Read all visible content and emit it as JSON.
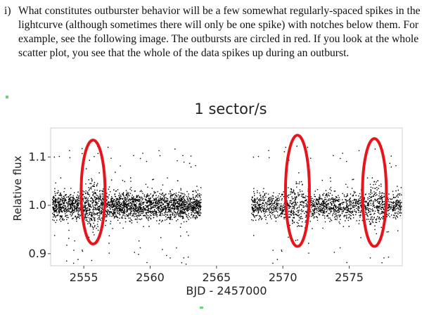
{
  "paragraph": {
    "marker": "i)",
    "text": "What constitutes outburster behavior will be a few somewhat regularly-spaced spikes in the lightcurve (although sometimes there will only be one spike) with notches below them. For example, see the following image. The outbursts are circled in red. If you look at the whole scatter plot, you see that the whole of the data spikes up during an outburst."
  },
  "chart_data": {
    "type": "scatter",
    "title": "1 sector/s",
    "xlabel": "BJD - 2457000",
    "ylabel": "Relative flux",
    "xlim": [
      2552.5,
      2579
    ],
    "ylim": [
      0.875,
      1.16
    ],
    "xticks": [
      2555,
      2560,
      2565,
      2570,
      2575
    ],
    "yticks": [
      0.9,
      1.0,
      1.1
    ],
    "xtick_labels": [
      "2555",
      "2560",
      "2565",
      "2570",
      "2575"
    ],
    "ytick_labels": [
      "0.9",
      "1.0",
      "1.1"
    ],
    "grid": false,
    "point_color": "#000000",
    "segments": [
      {
        "x_start": 2552.6,
        "x_end": 2563.8,
        "level": 1.0
      },
      {
        "x_start": 2567.6,
        "x_end": 2578.9,
        "level": 1.0
      }
    ],
    "annotations": [
      {
        "shape": "ellipse",
        "color": "#e8141b",
        "x_center": 2555.7,
        "y_min": 0.92,
        "y_max": 1.135
      },
      {
        "shape": "ellipse",
        "color": "#e8141b",
        "x_center": 2571.1,
        "y_min": 0.915,
        "y_max": 1.145
      },
      {
        "shape": "ellipse",
        "color": "#e8141b",
        "x_center": 2576.9,
        "y_min": 0.915,
        "y_max": 1.138
      }
    ]
  }
}
